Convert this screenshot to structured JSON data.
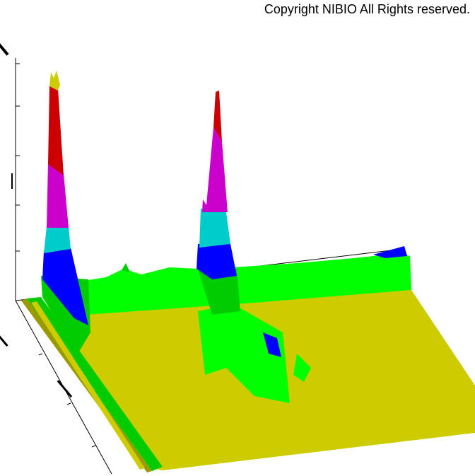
{
  "copyright": "Copyright NIBIO All Rights reserved."
}
